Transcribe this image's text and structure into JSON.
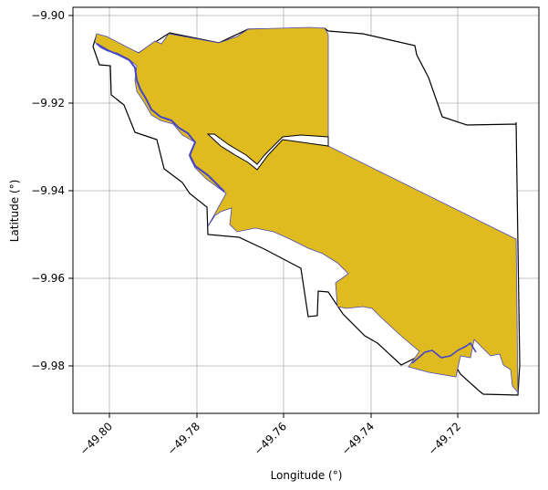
{
  "axes": {
    "xlabel": "Longitude (°)",
    "ylabel": "Latitude (°)",
    "x_ticks": [
      "−49.80",
      "−49.78",
      "−49.76",
      "−49.74",
      "−49.72"
    ],
    "y_ticks": [
      "−9.90",
      "−9.92",
      "−9.94",
      "−9.96",
      "−9.98"
    ],
    "xlim": [
      -49.804,
      -49.702
    ],
    "ylim": [
      -9.9905,
      -9.8985
    ],
    "grid": true
  },
  "colors": {
    "fill": "#e0bb20",
    "boundary": "#000000",
    "river": "#4444cc",
    "grid": "#b0b0b0",
    "background": "#ffffff"
  },
  "layers": [
    {
      "name": "outer-boundary",
      "role": "boundary-outline",
      "fill": "none"
    },
    {
      "name": "shaded-area",
      "role": "filled-region",
      "fill": "#e0bb20"
    },
    {
      "name": "river-channel",
      "role": "river",
      "fill": "#4444cc"
    }
  ]
}
